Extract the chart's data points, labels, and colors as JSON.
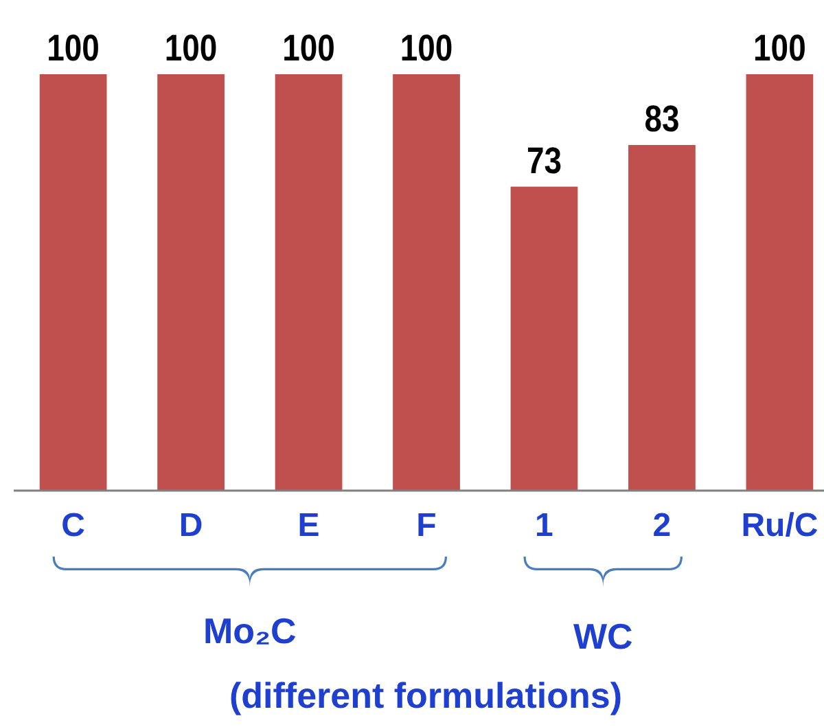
{
  "chart_data": {
    "type": "bar",
    "categories": [
      "C",
      "D",
      "E",
      "F",
      "1",
      "2",
      "Ru/C"
    ],
    "values": [
      100,
      100,
      100,
      100,
      73,
      83,
      100
    ],
    "color": "#c0504d",
    "data_labels": true,
    "annotations": [
      "Mo₂C",
      "WC",
      "(different formulations)"
    ]
  }
}
